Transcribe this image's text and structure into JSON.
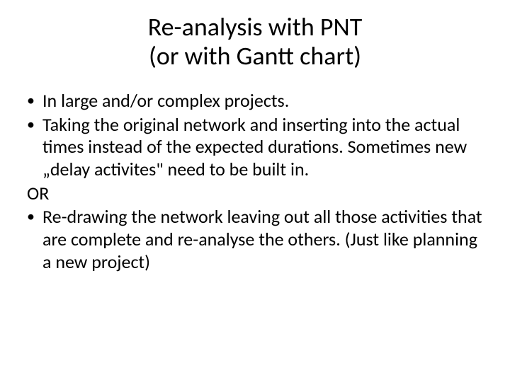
{
  "slide": {
    "title_line1": "Re-analysis with PNT",
    "title_line2": "(or with Gantt chart)",
    "bullets": {
      "b1": "In large and/or complex projects.",
      "b2": "Taking the original network and inserting into the actual times instead of the expected durations. Sometimes new „delay activites\" need to be built in.",
      "or": "OR",
      "b3": "Re-drawing the network leaving out all those activities that are complete and re-analyse the others. (Just like planning a new project)"
    },
    "bullet_marker": "•"
  },
  "style": {
    "background_color": "#ffffff",
    "text_color": "#000000",
    "title_fontsize": 36,
    "body_fontsize": 26,
    "font_family": "Calibri"
  }
}
